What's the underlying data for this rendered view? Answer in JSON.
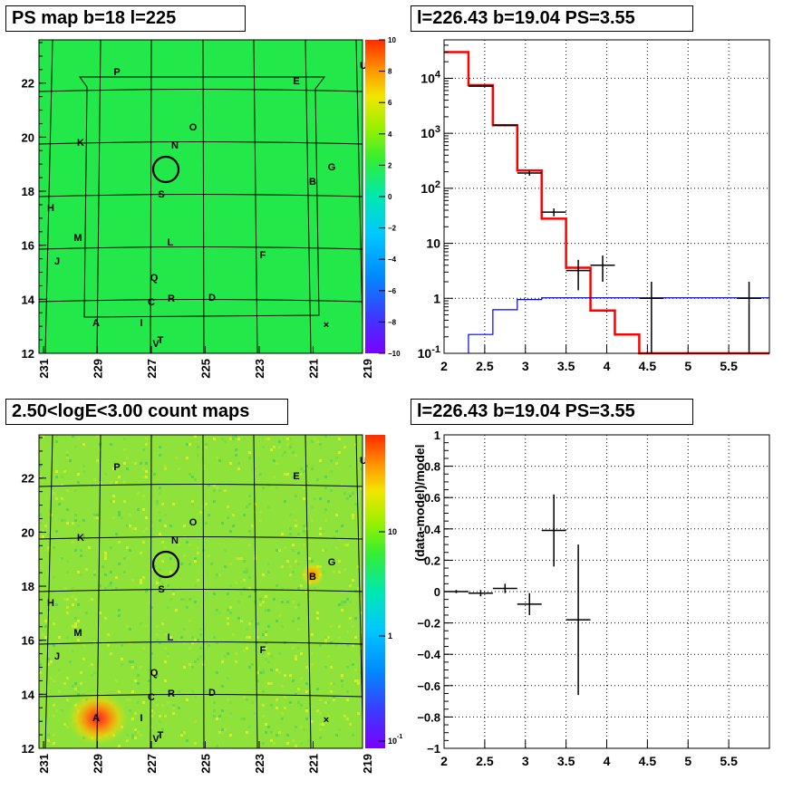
{
  "panels": {
    "ps_map_title": "PS map b=18 l=225",
    "spectrum_title": "l=226.43 b=19.04 PS=3.55",
    "count_map_title": "2.50<logE<3.00 count maps",
    "residual_title": "l=226.43 b=19.04 PS=3.55"
  },
  "chart_data": [
    {
      "type": "heatmap",
      "title": "PS map b=18 l=225",
      "xticks": [
        "231",
        "229",
        "227",
        "225",
        "223",
        "221",
        "219"
      ],
      "yticks": [
        "12",
        "14",
        "16",
        "18",
        "20",
        "22"
      ],
      "xlim": [
        231,
        219
      ],
      "ylim": [
        12,
        23.6
      ],
      "colorbar": {
        "ticks": [
          "10",
          "8",
          "6",
          "4",
          "2",
          "0",
          "−2",
          "−4",
          "−6",
          "−8",
          "−10"
        ],
        "range": [
          -10,
          10
        ]
      },
      "sources": [
        "P",
        "E",
        "U",
        "O",
        "K",
        "N",
        "G",
        "B",
        "S",
        "H",
        "M",
        "L",
        "J",
        "F",
        "Q",
        "C",
        "R",
        "D",
        "A",
        "I",
        "T",
        "V"
      ],
      "marker": "×"
    },
    {
      "type": "line",
      "title": "l=226.43 b=19.04 PS=3.55",
      "xlim": [
        2,
        6
      ],
      "ylim": [
        0.1,
        50000
      ],
      "yscale": "log",
      "xticks": [
        "2",
        "2.5",
        "3",
        "3.5",
        "4",
        "4.5",
        "5",
        "5.5"
      ],
      "yticks": [
        "10^{-1}",
        "1",
        "10",
        "10^{2}",
        "10^{3}",
        "10^{4}"
      ],
      "series": [
        {
          "color": "#ff0000",
          "bins": [
            [
              2.0,
              2.3,
              30000
            ],
            [
              2.3,
              2.6,
              7500
            ],
            [
              2.6,
              2.9,
              1400
            ],
            [
              2.9,
              3.2,
              210
            ],
            [
              3.2,
              3.5,
              28
            ],
            [
              3.5,
              3.8,
              3.6
            ],
            [
              3.8,
              4.1,
              0.6
            ],
            [
              4.1,
              4.4,
              0.22
            ],
            [
              4.4,
              6.0,
              0.1
            ]
          ]
        },
        {
          "color": "#0000ff",
          "bins": [
            [
              2.3,
              2.6,
              0.22
            ],
            [
              2.6,
              2.9,
              0.62
            ],
            [
              2.9,
              3.2,
              0.95
            ],
            [
              3.2,
              6.0,
              1.02
            ]
          ]
        },
        {
          "color": "#000000",
          "points": [
            [
              2.45,
              7200,
              0.15,
              7000,
              7400
            ],
            [
              2.75,
              1400,
              0.15,
              1340,
              1460
            ],
            [
              3.05,
              190,
              0.15,
              170,
              210
            ],
            [
              3.35,
              37,
              0.15,
              31,
              43
            ],
            [
              3.65,
              3.2,
              0.15,
              1.4,
              5.0
            ],
            [
              3.95,
              4.0,
              0.15,
              2.0,
              6.0
            ],
            [
              4.55,
              1.0,
              0.15,
              0.1,
              2.0
            ],
            [
              5.75,
              1.0,
              0.15,
              0.1,
              2.0
            ]
          ]
        }
      ]
    },
    {
      "type": "heatmap",
      "title": "2.50<logE<3.00 count maps",
      "xticks": [
        "231",
        "229",
        "227",
        "225",
        "223",
        "221",
        "219"
      ],
      "yticks": [
        "12",
        "14",
        "16",
        "18",
        "20",
        "22"
      ],
      "xlim": [
        231,
        219
      ],
      "ylim": [
        12,
        23.6
      ],
      "colorbar": {
        "ticks": [
          "10",
          "1",
          "10^{-1}"
        ],
        "scale": "log"
      },
      "sources": [
        "P",
        "E",
        "U",
        "O",
        "K",
        "N",
        "G",
        "B",
        "S",
        "H",
        "M",
        "L",
        "J",
        "F",
        "Q",
        "C",
        "R",
        "D",
        "A",
        "I",
        "T",
        "V"
      ],
      "marker": "×"
    },
    {
      "type": "scatter",
      "title": "l=226.43 b=19.04 PS=3.55",
      "ylabel": "(data-model)/model",
      "xlim": [
        2,
        6
      ],
      "ylim": [
        -1,
        1
      ],
      "xticks": [
        "2",
        "2.5",
        "3",
        "3.5",
        "4",
        "4.5",
        "5",
        "5.5"
      ],
      "yticks": [
        "1",
        "0.8",
        "0.6",
        "0.4",
        "0.2",
        "0",
        "−0.2",
        "−0.4",
        "−0.6",
        "−0.8",
        "−1"
      ],
      "points": [
        [
          2.15,
          0.0,
          0.15,
          -0.01,
          0.01
        ],
        [
          2.45,
          -0.01,
          0.15,
          -0.03,
          0.01
        ],
        [
          2.75,
          0.02,
          0.15,
          -0.01,
          0.05
        ],
        [
          3.05,
          -0.08,
          0.15,
          -0.15,
          -0.01
        ],
        [
          3.35,
          0.39,
          0.15,
          0.16,
          0.62
        ],
        [
          3.65,
          -0.18,
          0.15,
          -0.66,
          0.3
        ]
      ]
    }
  ]
}
